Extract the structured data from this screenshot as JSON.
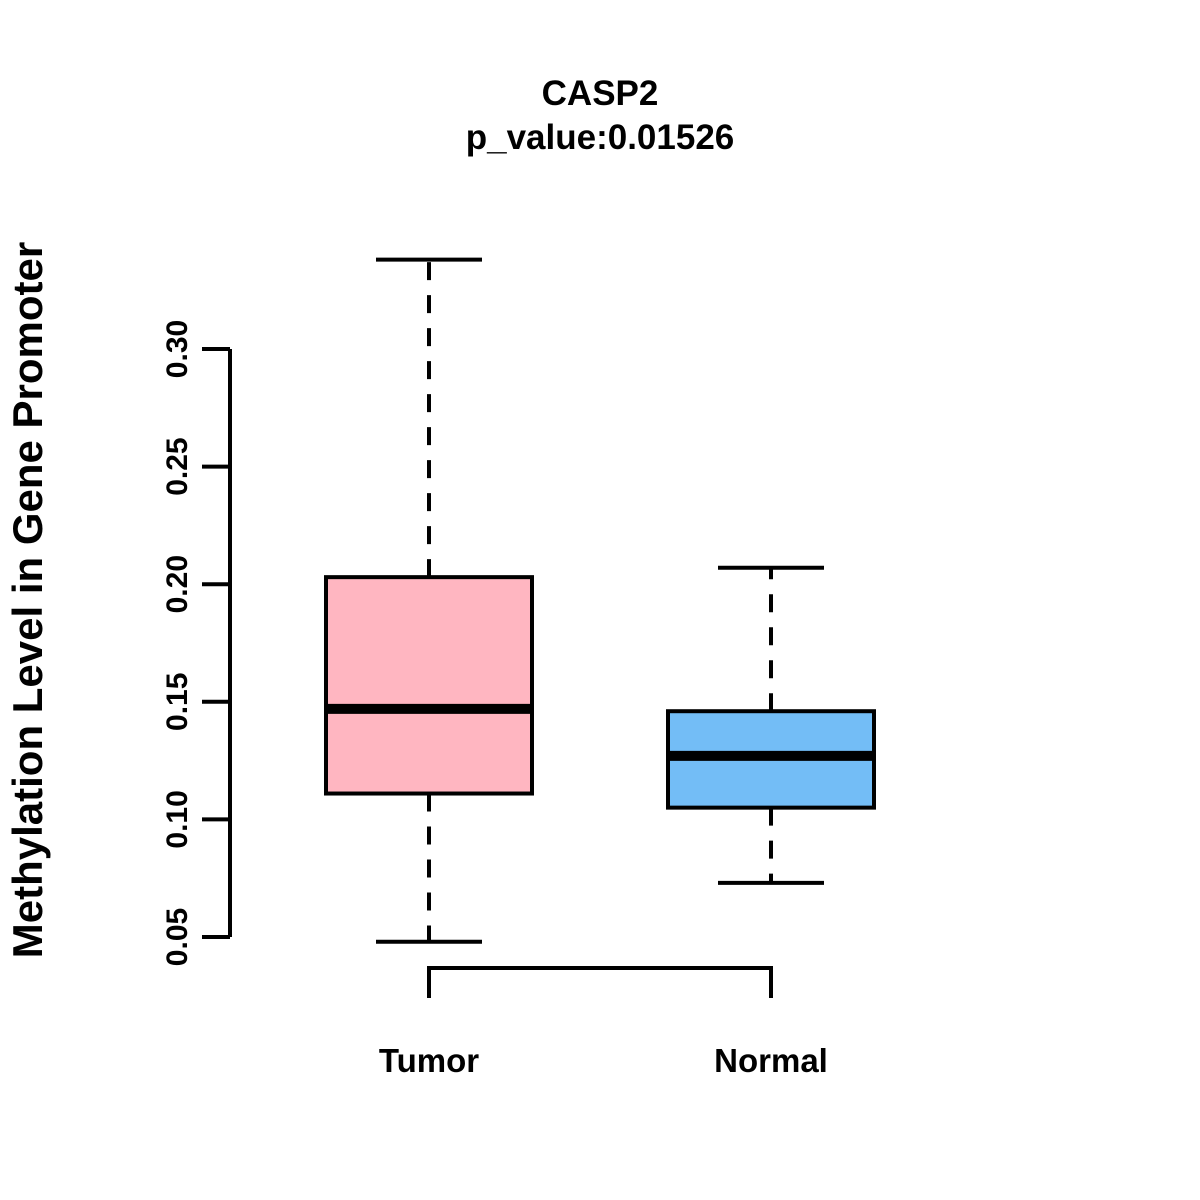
{
  "figure": {
    "title": "CASP2",
    "subtitle": "p_value:0.01526",
    "ylabel": "Methylation Level in Gene Promoter"
  },
  "colors": {
    "tumor_fill": "#FFB6C1",
    "normal_fill": "#73BDF6",
    "line": "#000000",
    "background": "#FFFFFF"
  },
  "chart_data": {
    "type": "boxplot",
    "title": "CASP2",
    "subtitle": "p_value:0.01526",
    "xlabel": "",
    "ylabel": "Methylation Level in Gene Promoter",
    "categories": [
      "Tumor",
      "Normal"
    ],
    "ylim": [
      0.05,
      0.3
    ],
    "yticks": [
      0.05,
      0.1,
      0.15,
      0.2,
      0.25,
      0.3
    ],
    "grid": false,
    "legend": "none",
    "series": [
      {
        "name": "Tumor",
        "color": "#FFB6C1",
        "whisker_low": 0.048,
        "q1": 0.111,
        "median": 0.147,
        "q3": 0.203,
        "whisker_high": 0.338
      },
      {
        "name": "Normal",
        "color": "#73BDF6",
        "whisker_low": 0.073,
        "q1": 0.105,
        "median": 0.127,
        "q3": 0.146,
        "whisker_high": 0.207
      }
    ]
  }
}
